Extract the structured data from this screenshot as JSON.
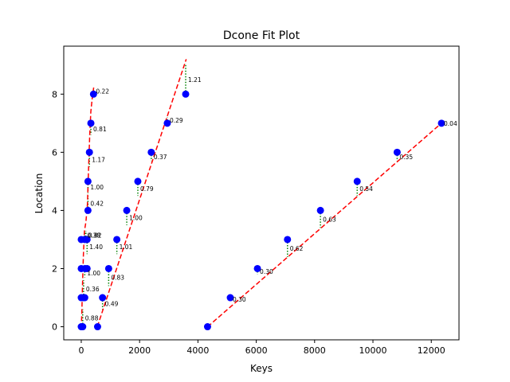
{
  "chart_data": {
    "type": "scatter",
    "title": "Dcone Fit Plot",
    "xlabel": "Keys",
    "ylabel": "Location",
    "xlim": [
      -600,
      12950
    ],
    "ylim": [
      -0.45,
      9.65
    ],
    "xticks": [
      0,
      2000,
      4000,
      6000,
      8000,
      10000,
      12000
    ],
    "yticks": [
      0,
      2,
      4,
      6,
      8
    ],
    "grid": false,
    "points_color": "#0000ff",
    "fit_color": "#ff0000",
    "residual_color": "#008000",
    "points": [
      {
        "x": 0,
        "y": 0
      },
      {
        "x": 50,
        "y": 0
      },
      {
        "x": 0,
        "y": 1
      },
      {
        "x": 80,
        "y": 1
      },
      {
        "x": 120,
        "y": 1
      },
      {
        "x": 0,
        "y": 2
      },
      {
        "x": 130,
        "y": 2
      },
      {
        "x": 200,
        "y": 2
      },
      {
        "x": 0,
        "y": 3
      },
      {
        "x": 120,
        "y": 3
      },
      {
        "x": 200,
        "y": 3
      },
      {
        "x": 230,
        "y": 4
      },
      {
        "x": 230,
        "y": 5
      },
      {
        "x": 280,
        "y": 6
      },
      {
        "x": 330,
        "y": 7
      },
      {
        "x": 420,
        "y": 8
      },
      {
        "x": 560,
        "y": 0
      },
      {
        "x": 730,
        "y": 1
      },
      {
        "x": 940,
        "y": 2
      },
      {
        "x": 1220,
        "y": 3
      },
      {
        "x": 1560,
        "y": 4
      },
      {
        "x": 1940,
        "y": 5
      },
      {
        "x": 2400,
        "y": 6
      },
      {
        "x": 2950,
        "y": 7
      },
      {
        "x": 3580,
        "y": 8
      },
      {
        "x": 4330,
        "y": 0
      },
      {
        "x": 5110,
        "y": 1
      },
      {
        "x": 6040,
        "y": 2
      },
      {
        "x": 7070,
        "y": 3
      },
      {
        "x": 8200,
        "y": 4
      },
      {
        "x": 9460,
        "y": 5
      },
      {
        "x": 10830,
        "y": 6
      },
      {
        "x": 12350,
        "y": 7
      }
    ],
    "fit_lines": [
      [
        [
          0,
          -0.05
        ],
        [
          20,
          0.5
        ],
        [
          45,
          1.5
        ],
        [
          75,
          2.5
        ],
        [
          110,
          3.3
        ],
        [
          160,
          3.6
        ],
        [
          210,
          4.2
        ],
        [
          250,
          5.4
        ],
        [
          290,
          6.6
        ],
        [
          330,
          7.4
        ],
        [
          380,
          7.9
        ],
        [
          430,
          8.25
        ]
      ],
      [
        [
          550,
          0.0
        ],
        [
          1560,
          3.05
        ],
        [
          3600,
          9.2
        ]
      ],
      [
        [
          4330,
          0.0
        ],
        [
          12350,
          7.0
        ]
      ]
    ],
    "residuals": [
      {
        "x": 50,
        "y_point": 0,
        "y_fit": 0.6,
        "label": "0.88"
      },
      {
        "x": 80,
        "y_point": 1,
        "y_fit": 1.6,
        "label": "0.36"
      },
      {
        "x": 120,
        "y_point": 2,
        "y_fit": 1.7,
        "label": "1.00"
      },
      {
        "x": 200,
        "y_point": 3,
        "y_fit": 2.5,
        "label": "1.40"
      },
      {
        "x": 160,
        "y_point": 3,
        "y_fit": 3.3,
        "label": "0.82"
      },
      {
        "x": 120,
        "y_point": 3,
        "y_fit": 3.3,
        "label": "0.38"
      },
      {
        "x": 230,
        "y_point": 4,
        "y_fit": 4.5,
        "label": "0.42"
      },
      {
        "x": 230,
        "y_point": 5,
        "y_fit": 4.6,
        "label": "1.00"
      },
      {
        "x": 280,
        "y_point": 6,
        "y_fit": 5.5,
        "label": "1.17"
      },
      {
        "x": 330,
        "y_point": 7,
        "y_fit": 6.6,
        "label": "0.81"
      },
      {
        "x": 420,
        "y_point": 8,
        "y_fit": 8.2,
        "label": "0.22"
      },
      {
        "x": 730,
        "y_point": 1,
        "y_fit": 0.6,
        "label": "0.49"
      },
      {
        "x": 940,
        "y_point": 2,
        "y_fit": 1.4,
        "label": "0.83"
      },
      {
        "x": 1220,
        "y_point": 3,
        "y_fit": 2.5,
        "label": "1.01"
      },
      {
        "x": 1560,
        "y_point": 4,
        "y_fit": 3.5,
        "label": "1.00"
      },
      {
        "x": 1940,
        "y_point": 5,
        "y_fit": 4.5,
        "label": "0.79"
      },
      {
        "x": 2400,
        "y_point": 6,
        "y_fit": 5.7,
        "label": "0.37"
      },
      {
        "x": 2950,
        "y_point": 7,
        "y_fit": 7.2,
        "label": "0.29"
      },
      {
        "x": 3580,
        "y_point": 8,
        "y_fit": 9.0,
        "label": "1.21"
      },
      {
        "x": 5110,
        "y_point": 1,
        "y_fit": 0.9,
        "label": "0.30"
      },
      {
        "x": 6040,
        "y_point": 2,
        "y_fit": 1.8,
        "label": "0.30"
      },
      {
        "x": 7070,
        "y_point": 3,
        "y_fit": 2.4,
        "label": "0.62"
      },
      {
        "x": 8200,
        "y_point": 4,
        "y_fit": 3.4,
        "label": "0.63"
      },
      {
        "x": 9460,
        "y_point": 5,
        "y_fit": 4.5,
        "label": "0.54"
      },
      {
        "x": 10830,
        "y_point": 6,
        "y_fit": 5.7,
        "label": "0.35"
      },
      {
        "x": 12350,
        "y_point": 7,
        "y_fit": 7.0,
        "label": "0.04"
      }
    ]
  }
}
